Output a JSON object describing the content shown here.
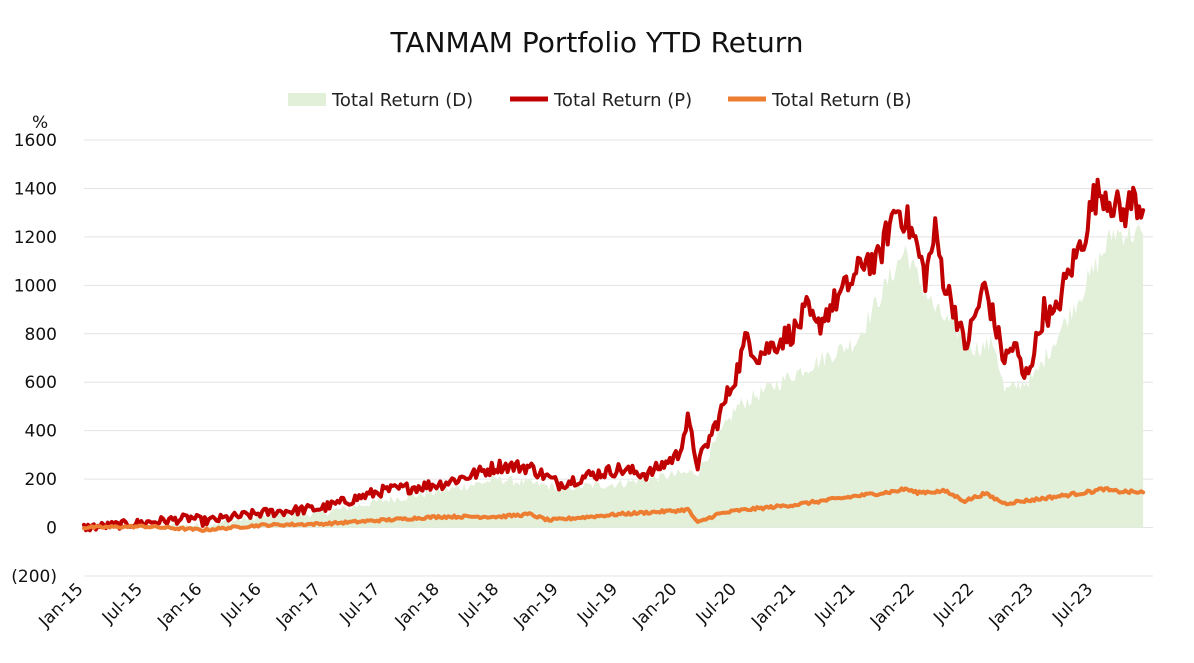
{
  "chart_data": {
    "type": "area",
    "title": "TANMAM Portfolio YTD Return",
    "ylabel": "%",
    "xlabel": "",
    "ylim": [
      -200,
      1600
    ],
    "yticks": [
      {
        "value": 1600,
        "label": "1600"
      },
      {
        "value": 1400,
        "label": "1400"
      },
      {
        "value": 1200,
        "label": "1200"
      },
      {
        "value": 1000,
        "label": "1000"
      },
      {
        "value": 800,
        "label": "800"
      },
      {
        "value": 600,
        "label": "600"
      },
      {
        "value": 400,
        "label": "400"
      },
      {
        "value": 200,
        "label": "200"
      },
      {
        "value": 0,
        "label": "0"
      },
      {
        "value": -200,
        "label": "(200)"
      }
    ],
    "grid": true,
    "legend_position": "top-center",
    "x": [
      "Jan-15",
      "Jul-15",
      "Jan-16",
      "Jul-16",
      "Jan-17",
      "Jul-17",
      "Jan-18",
      "Jul-18",
      "Jan-19",
      "Jul-19",
      "Jan-20",
      "Jul-20",
      "Jan-21",
      "Jul-21",
      "Jan-22",
      "Jul-22",
      "Jan-23",
      "Jul-23"
    ],
    "x_end": "Dec-23",
    "series": [
      {
        "name": "Total Return (D)",
        "style": "area",
        "color": "#e2efd9",
        "points": [
          [
            "Jan-15",
            0
          ],
          [
            "Jul-15",
            5
          ],
          [
            "Jan-16",
            10
          ],
          [
            "Jul-16",
            45
          ],
          [
            "Jan-17",
            60
          ],
          [
            "Jul-17",
            110
          ],
          [
            "Jan-18",
            150
          ],
          [
            "Jul-18",
            200
          ],
          [
            "Jan-19",
            165
          ],
          [
            "Jul-19",
            180
          ],
          [
            "Jan-20",
            220
          ],
          [
            "Mar-20",
            230
          ],
          [
            "Jul-20",
            500
          ],
          [
            "Jan-21",
            640
          ],
          [
            "Jul-21",
            770
          ],
          [
            "Oct-21",
            1000
          ],
          [
            "Dec-21",
            1150
          ],
          [
            "Jan-22",
            1050
          ],
          [
            "Mar-22",
            900
          ],
          [
            "Jul-22",
            740
          ],
          [
            "Sep-22",
            760
          ],
          [
            "Oct-22",
            560
          ],
          [
            "Jan-23",
            620
          ],
          [
            "Jul-23",
            1060
          ],
          [
            "Sep-23",
            1220
          ],
          [
            "Dec-23",
            1210
          ]
        ]
      },
      {
        "name": "Total Return (P)",
        "style": "line",
        "color": "#c00000",
        "points": [
          [
            "Jan-15",
            0
          ],
          [
            "Apr-15",
            10
          ],
          [
            "Jul-15",
            20
          ],
          [
            "Dec-15",
            40
          ],
          [
            "Jan-16",
            25
          ],
          [
            "Jul-16",
            60
          ],
          [
            "Jan-17",
            80
          ],
          [
            "Jul-17",
            150
          ],
          [
            "Jan-18",
            180
          ],
          [
            "Apr-18",
            215
          ],
          [
            "Jul-18",
            255
          ],
          [
            "Oct-18",
            250
          ],
          [
            "Jan-19",
            180
          ],
          [
            "Apr-19",
            215
          ],
          [
            "Jul-19",
            240
          ],
          [
            "Oct-19",
            220
          ],
          [
            "Jan-20",
            300
          ],
          [
            "Feb-20",
            440
          ],
          [
            "Mar-20",
            260
          ],
          [
            "May-20",
            440
          ],
          [
            "Jul-20",
            650
          ],
          [
            "Aug-20",
            790
          ],
          [
            "Sep-20",
            710
          ],
          [
            "Jan-21",
            820
          ],
          [
            "Feb-21",
            900
          ],
          [
            "Mar-21",
            820
          ],
          [
            "Apr-21",
            890
          ],
          [
            "Jul-21",
            1040
          ],
          [
            "Aug-21",
            1120
          ],
          [
            "Sep-21",
            1080
          ],
          [
            "Nov-21",
            1320
          ],
          [
            "Dec-21",
            1280
          ],
          [
            "Jan-22",
            1180
          ],
          [
            "Feb-22",
            1030
          ],
          [
            "Mar-22",
            1220
          ],
          [
            "Apr-22",
            1000
          ],
          [
            "May-22",
            900
          ],
          [
            "Jun-22",
            740
          ],
          [
            "Aug-22",
            1000
          ],
          [
            "Oct-22",
            690
          ],
          [
            "Nov-22",
            760
          ],
          [
            "Dec-22",
            610
          ],
          [
            "Jan-23",
            730
          ],
          [
            "Feb-23",
            900
          ],
          [
            "Mar-23",
            860
          ],
          [
            "Apr-23",
            1000
          ],
          [
            "Jun-23",
            1200
          ],
          [
            "Jul-23",
            1360
          ],
          [
            "Aug-23",
            1390
          ],
          [
            "Oct-23",
            1290
          ],
          [
            "Nov-23",
            1360
          ],
          [
            "Dec-23",
            1310
          ]
        ]
      },
      {
        "name": "Total Return (B)",
        "style": "line",
        "color": "#ed7d31",
        "points": [
          [
            "Jan-15",
            0
          ],
          [
            "Jul-15",
            5
          ],
          [
            "Jan-16",
            -10
          ],
          [
            "Jul-16",
            10
          ],
          [
            "Jan-17",
            15
          ],
          [
            "Jul-17",
            30
          ],
          [
            "Jan-18",
            45
          ],
          [
            "Jul-18",
            45
          ],
          [
            "Oct-18",
            55
          ],
          [
            "Dec-18",
            30
          ],
          [
            "Jul-19",
            55
          ],
          [
            "Jan-20",
            70
          ],
          [
            "Feb-20",
            75
          ],
          [
            "Mar-20",
            20
          ],
          [
            "May-20",
            55
          ],
          [
            "Jul-20",
            70
          ],
          [
            "Jan-21",
            95
          ],
          [
            "Jul-21",
            130
          ],
          [
            "Nov-21",
            150
          ],
          [
            "Dec-21",
            160
          ],
          [
            "Jan-22",
            145
          ],
          [
            "Apr-22",
            150
          ],
          [
            "Jun-22",
            110
          ],
          [
            "Aug-22",
            140
          ],
          [
            "Oct-22",
            100
          ],
          [
            "Jan-23",
            115
          ],
          [
            "Jul-23",
            150
          ],
          [
            "Aug-23",
            160
          ],
          [
            "Sep-23",
            150
          ],
          [
            "Dec-23",
            145
          ]
        ]
      }
    ]
  }
}
